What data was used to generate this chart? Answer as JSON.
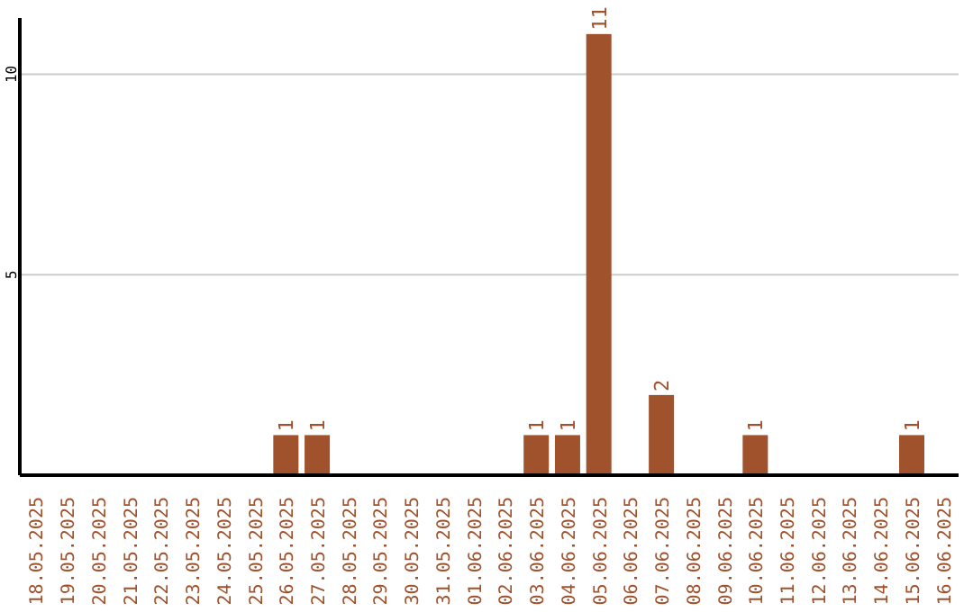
{
  "chart_data": {
    "type": "bar",
    "categories": [
      "18.05.2025",
      "19.05.2025",
      "20.05.2025",
      "21.05.2025",
      "22.05.2025",
      "23.05.2025",
      "24.05.2025",
      "25.05.2025",
      "26.05.2025",
      "27.05.2025",
      "28.05.2025",
      "29.05.2025",
      "30.05.2025",
      "31.05.2025",
      "01.06.2025",
      "02.06.2025",
      "03.06.2025",
      "04.06.2025",
      "05.06.2025",
      "06.06.2025",
      "07.06.2025",
      "08.06.2025",
      "09.06.2025",
      "10.06.2025",
      "11.06.2025",
      "12.06.2025",
      "13.06.2025",
      "14.06.2025",
      "15.06.2025",
      "16.06.2025"
    ],
    "values": [
      0,
      0,
      0,
      0,
      0,
      0,
      0,
      0,
      1,
      1,
      0,
      0,
      0,
      0,
      0,
      0,
      1,
      1,
      11,
      0,
      2,
      0,
      0,
      1,
      0,
      0,
      0,
      0,
      1,
      0
    ],
    "value_labels": [
      null,
      null,
      null,
      null,
      null,
      null,
      null,
      null,
      "1",
      "1",
      null,
      null,
      null,
      null,
      null,
      null,
      "1",
      "1",
      "11",
      null,
      "2",
      null,
      null,
      "1",
      null,
      null,
      null,
      null,
      "1",
      null
    ],
    "color": "#a0522d",
    "ylim": [
      0,
      11.4
    ],
    "yticks": [
      5,
      10
    ],
    "grid": "y"
  }
}
